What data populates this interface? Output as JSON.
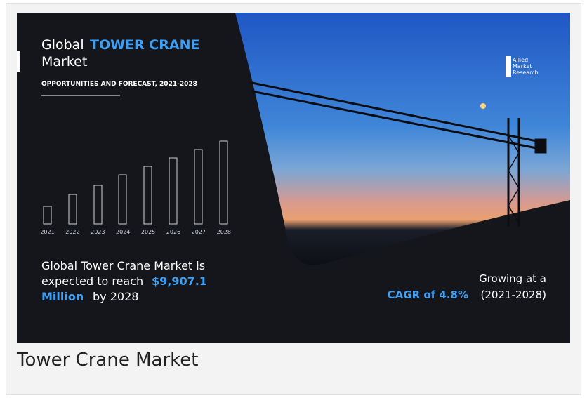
{
  "infographic": {
    "title_prefix": "Global",
    "title_highlight": "TOWER CRANE",
    "title_suffix": "Market",
    "subtitle": "OPPORTUNITIES AND FORECAST, 2021-2028",
    "years": [
      "2021",
      "2022",
      "2023",
      "2024",
      "2025",
      "2026",
      "2027",
      "2028"
    ],
    "forecast_line1": "Global Tower Crane Market is",
    "forecast_line2": "expected to reach",
    "forecast_value": "$9,907.1",
    "forecast_unit": "Million",
    "forecast_tail": "by 2028",
    "growth_line1": "Growing at a",
    "growth_cagr": "CAGR of 4.8%",
    "growth_period": "(2021-2028)",
    "logo": [
      "Allied",
      "Market",
      "Research"
    ]
  },
  "caption": "Tower Crane Market"
}
